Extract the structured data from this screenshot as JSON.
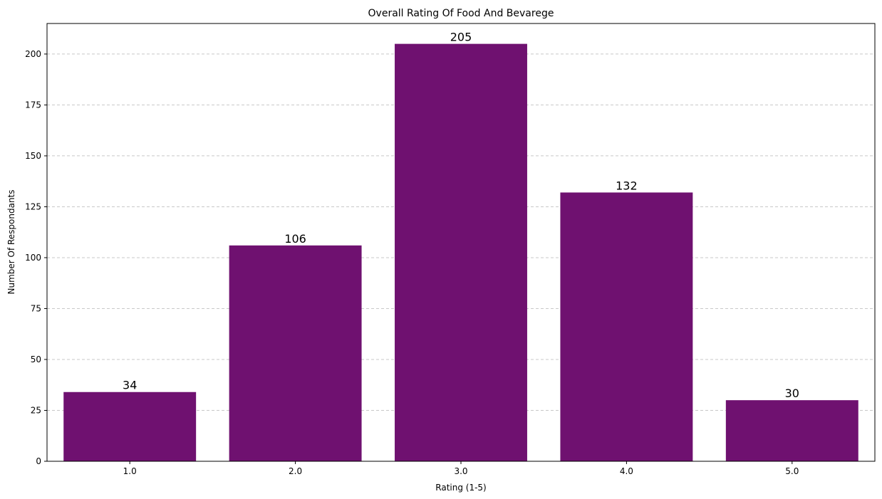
{
  "chart_data": {
    "type": "bar",
    "title": "Overall Rating Of Food And Bevarege",
    "xlabel": "Rating (1-5)",
    "ylabel": "Number Of Respondants",
    "categories": [
      "1.0",
      "2.0",
      "3.0",
      "4.0",
      "5.0"
    ],
    "values": [
      34,
      106,
      205,
      132,
      30
    ],
    "ylim": [
      0,
      215
    ],
    "yticks": [
      0,
      25,
      50,
      75,
      100,
      125,
      150,
      175,
      200
    ],
    "grid": "horizontal dashed",
    "bar_color": "#6f1170",
    "grid_color": "#c8c8c8"
  }
}
